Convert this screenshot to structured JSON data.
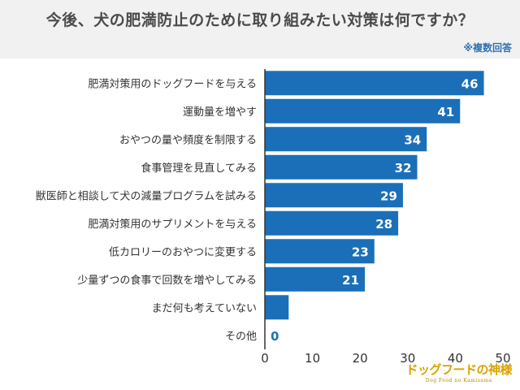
{
  "header": {
    "title": "今後、犬の肥満防止のために取り組みたい対策は何ですか？",
    "note": "※複数回答"
  },
  "logo": {
    "text": "ドッグフードの神様",
    "subtext": "Dog Food no Kamisama"
  },
  "colors": {
    "bar": "#1b6fb9",
    "zero_label": "#1b6fb9",
    "axis": "#333333",
    "header_bg": "#f1f1f1"
  },
  "chart_data": {
    "type": "bar",
    "orientation": "horizontal",
    "categories": [
      "肥満対策用のドッグフードを与える",
      "運動量を増やす",
      "おやつの量や頻度を制限する",
      "食事管理を見直してみる",
      "獣医師と相談して犬の減量プログラムを試みる",
      "肥満対策用のサプリメントを与える",
      "低カロリーのおやつに変更する",
      "少量ずつの食事で回数を増やしてみる",
      "まだ何も考えていない",
      "その他"
    ],
    "values": [
      46,
      41,
      34,
      32,
      29,
      28,
      23,
      21,
      5,
      0
    ],
    "xlim": [
      0,
      50
    ],
    "xticks": [
      0,
      10,
      20,
      30,
      40,
      50
    ],
    "grid": false,
    "legend": "none"
  }
}
